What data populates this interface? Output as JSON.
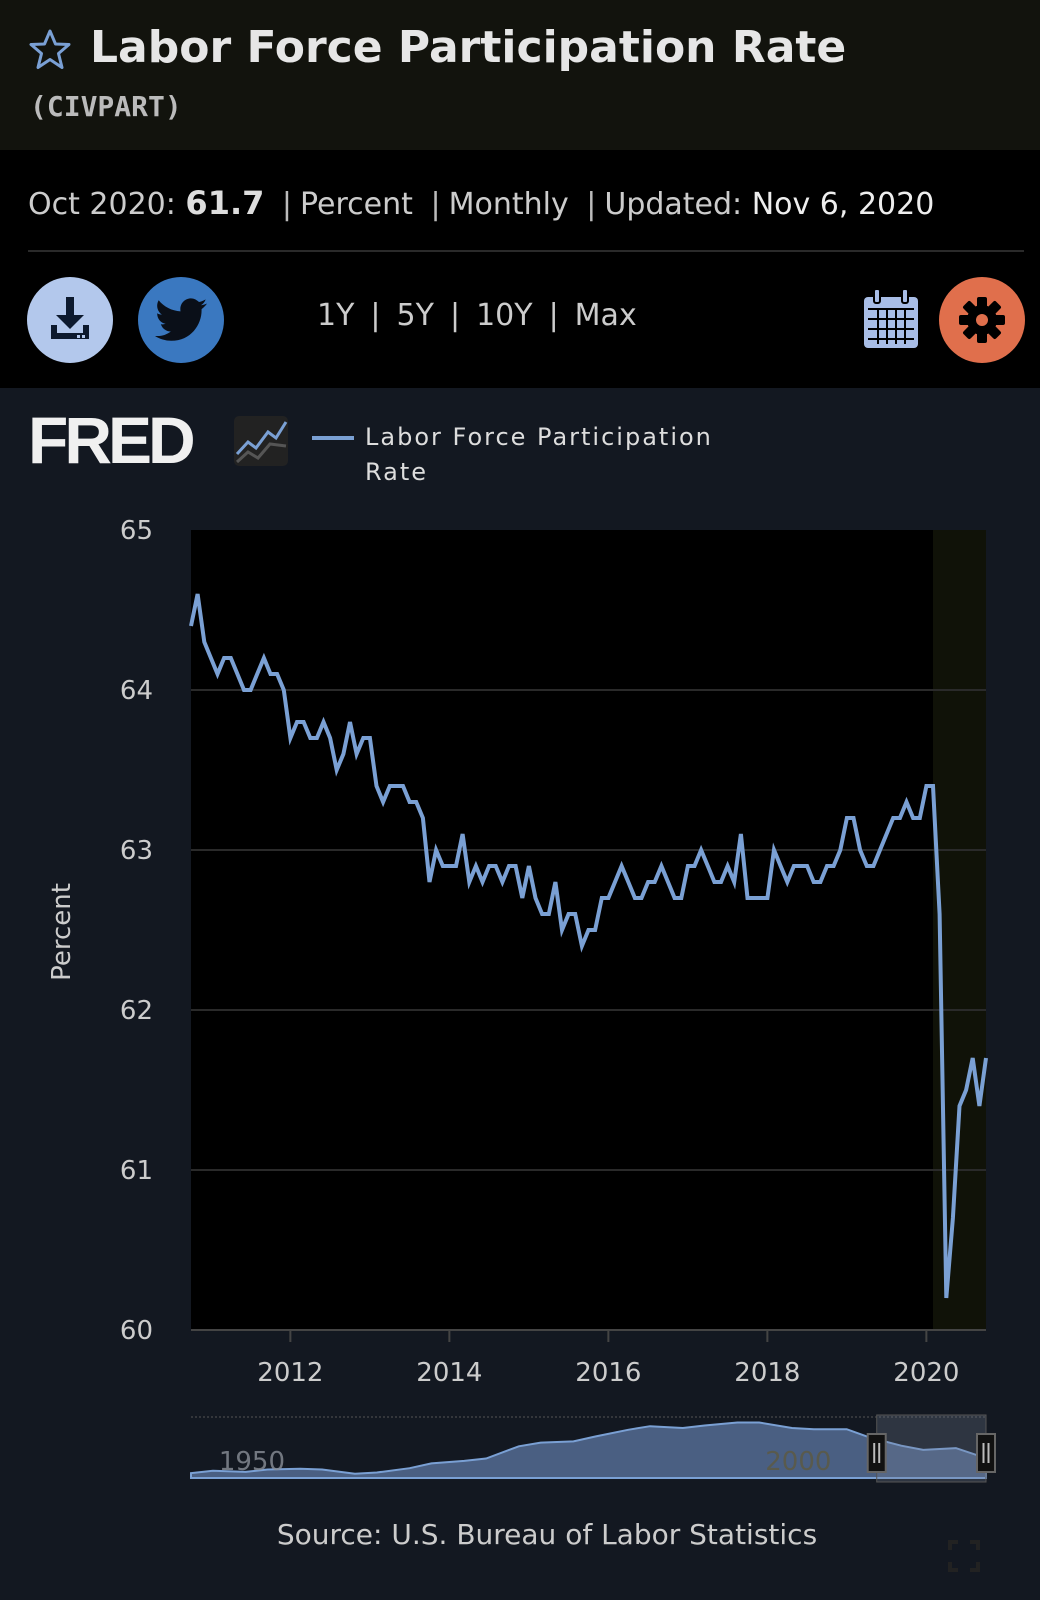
{
  "header": {
    "title": "Labor Force Participation Rate",
    "series_id": "(CIVPART)",
    "star_icon": "star-outline-icon"
  },
  "info": {
    "period": "Oct 2020:",
    "value": "61.7",
    "units": "Percent",
    "frequency": "Monthly",
    "updated_label": "Updated:",
    "updated_date": "Nov 6, 2020",
    "separator": "|"
  },
  "toolbar": {
    "download_icon": "download-icon",
    "twitter_icon": "twitter-icon",
    "ranges": [
      "1Y",
      "5Y",
      "10Y",
      "Max"
    ],
    "calendar_icon": "calendar-icon",
    "settings_icon": "gear-icon",
    "colors": {
      "download": "#b3c8ec",
      "twitter": "#3a78c0",
      "settings": "#e06f4c",
      "calendar": "#a8bde6"
    }
  },
  "logo": {
    "text": "FRED"
  },
  "source": "Source: U.S. Bureau of Labor Statistics",
  "chart_data": {
    "type": "line",
    "legend": "Labor Force Participation Rate",
    "legend_position": "top-left",
    "ylabel": "Percent",
    "xlabel": "",
    "ylim": [
      60,
      65
    ],
    "yticks": [
      "65",
      "64",
      "63",
      "62",
      "61",
      "60"
    ],
    "xticks": [
      "2012",
      "2014",
      "2016",
      "2018",
      "2020"
    ],
    "x_start": "2010-10",
    "x_end": "2020-10",
    "frequency": "monthly",
    "grid": true,
    "line_color": "#7aa0d4",
    "recession_shading": {
      "start": "2020-02",
      "end": "2020-10",
      "color": "#101208"
    },
    "series": [
      {
        "name": "Labor Force Participation Rate",
        "values": [
          64.4,
          64.6,
          64.3,
          64.2,
          64.1,
          64.2,
          64.2,
          64.1,
          64.0,
          64.0,
          64.1,
          64.2,
          64.1,
          64.1,
          64.0,
          63.7,
          63.8,
          63.8,
          63.7,
          63.7,
          63.8,
          63.7,
          63.5,
          63.6,
          63.8,
          63.6,
          63.7,
          63.7,
          63.4,
          63.3,
          63.4,
          63.4,
          63.4,
          63.3,
          63.3,
          63.2,
          62.8,
          63.0,
          62.9,
          62.9,
          62.9,
          63.1,
          62.8,
          62.9,
          62.8,
          62.9,
          62.9,
          62.8,
          62.9,
          62.9,
          62.7,
          62.9,
          62.7,
          62.6,
          62.6,
          62.8,
          62.5,
          62.6,
          62.6,
          62.4,
          62.5,
          62.5,
          62.7,
          62.7,
          62.8,
          62.9,
          62.8,
          62.7,
          62.7,
          62.8,
          62.8,
          62.9,
          62.8,
          62.7,
          62.7,
          62.9,
          62.9,
          63.0,
          62.9,
          62.8,
          62.8,
          62.9,
          62.8,
          63.1,
          62.7,
          62.7,
          62.7,
          62.7,
          63.0,
          62.9,
          62.8,
          62.9,
          62.9,
          62.9,
          62.8,
          62.8,
          62.9,
          62.9,
          63.0,
          63.2,
          63.2,
          63.0,
          62.9,
          62.9,
          63.0,
          63.1,
          63.2,
          63.2,
          63.3,
          63.2,
          63.2,
          63.4,
          63.4,
          62.6,
          60.2,
          60.7,
          61.4,
          61.5,
          61.7,
          61.4,
          61.7
        ]
      }
    ],
    "navigator": {
      "labels": [
        "1950",
        "2000"
      ],
      "x_range": [
        1948,
        2020.75
      ],
      "selected": [
        "2010-10",
        "2020-10"
      ],
      "years": [
        1948,
        1950,
        1953,
        1955,
        1958,
        1960,
        1963,
        1965,
        1968,
        1970,
        1973,
        1975,
        1978,
        1980,
        1983,
        1985,
        1988,
        1990,
        1993,
        1995,
        1998,
        2000,
        2003,
        2005,
        2008,
        2010,
        2013,
        2015,
        2018,
        2020,
        2020.75
      ],
      "values": [
        58.8,
        59.2,
        59.0,
        59.4,
        59.5,
        59.4,
        58.7,
        58.9,
        59.6,
        60.4,
        60.8,
        61.2,
        63.2,
        63.8,
        64.0,
        64.8,
        65.9,
        66.5,
        66.2,
        66.6,
        67.1,
        67.1,
        66.2,
        66.0,
        66.0,
        64.7,
        63.3,
        62.6,
        62.9,
        61.7,
        61.7
      ]
    }
  }
}
